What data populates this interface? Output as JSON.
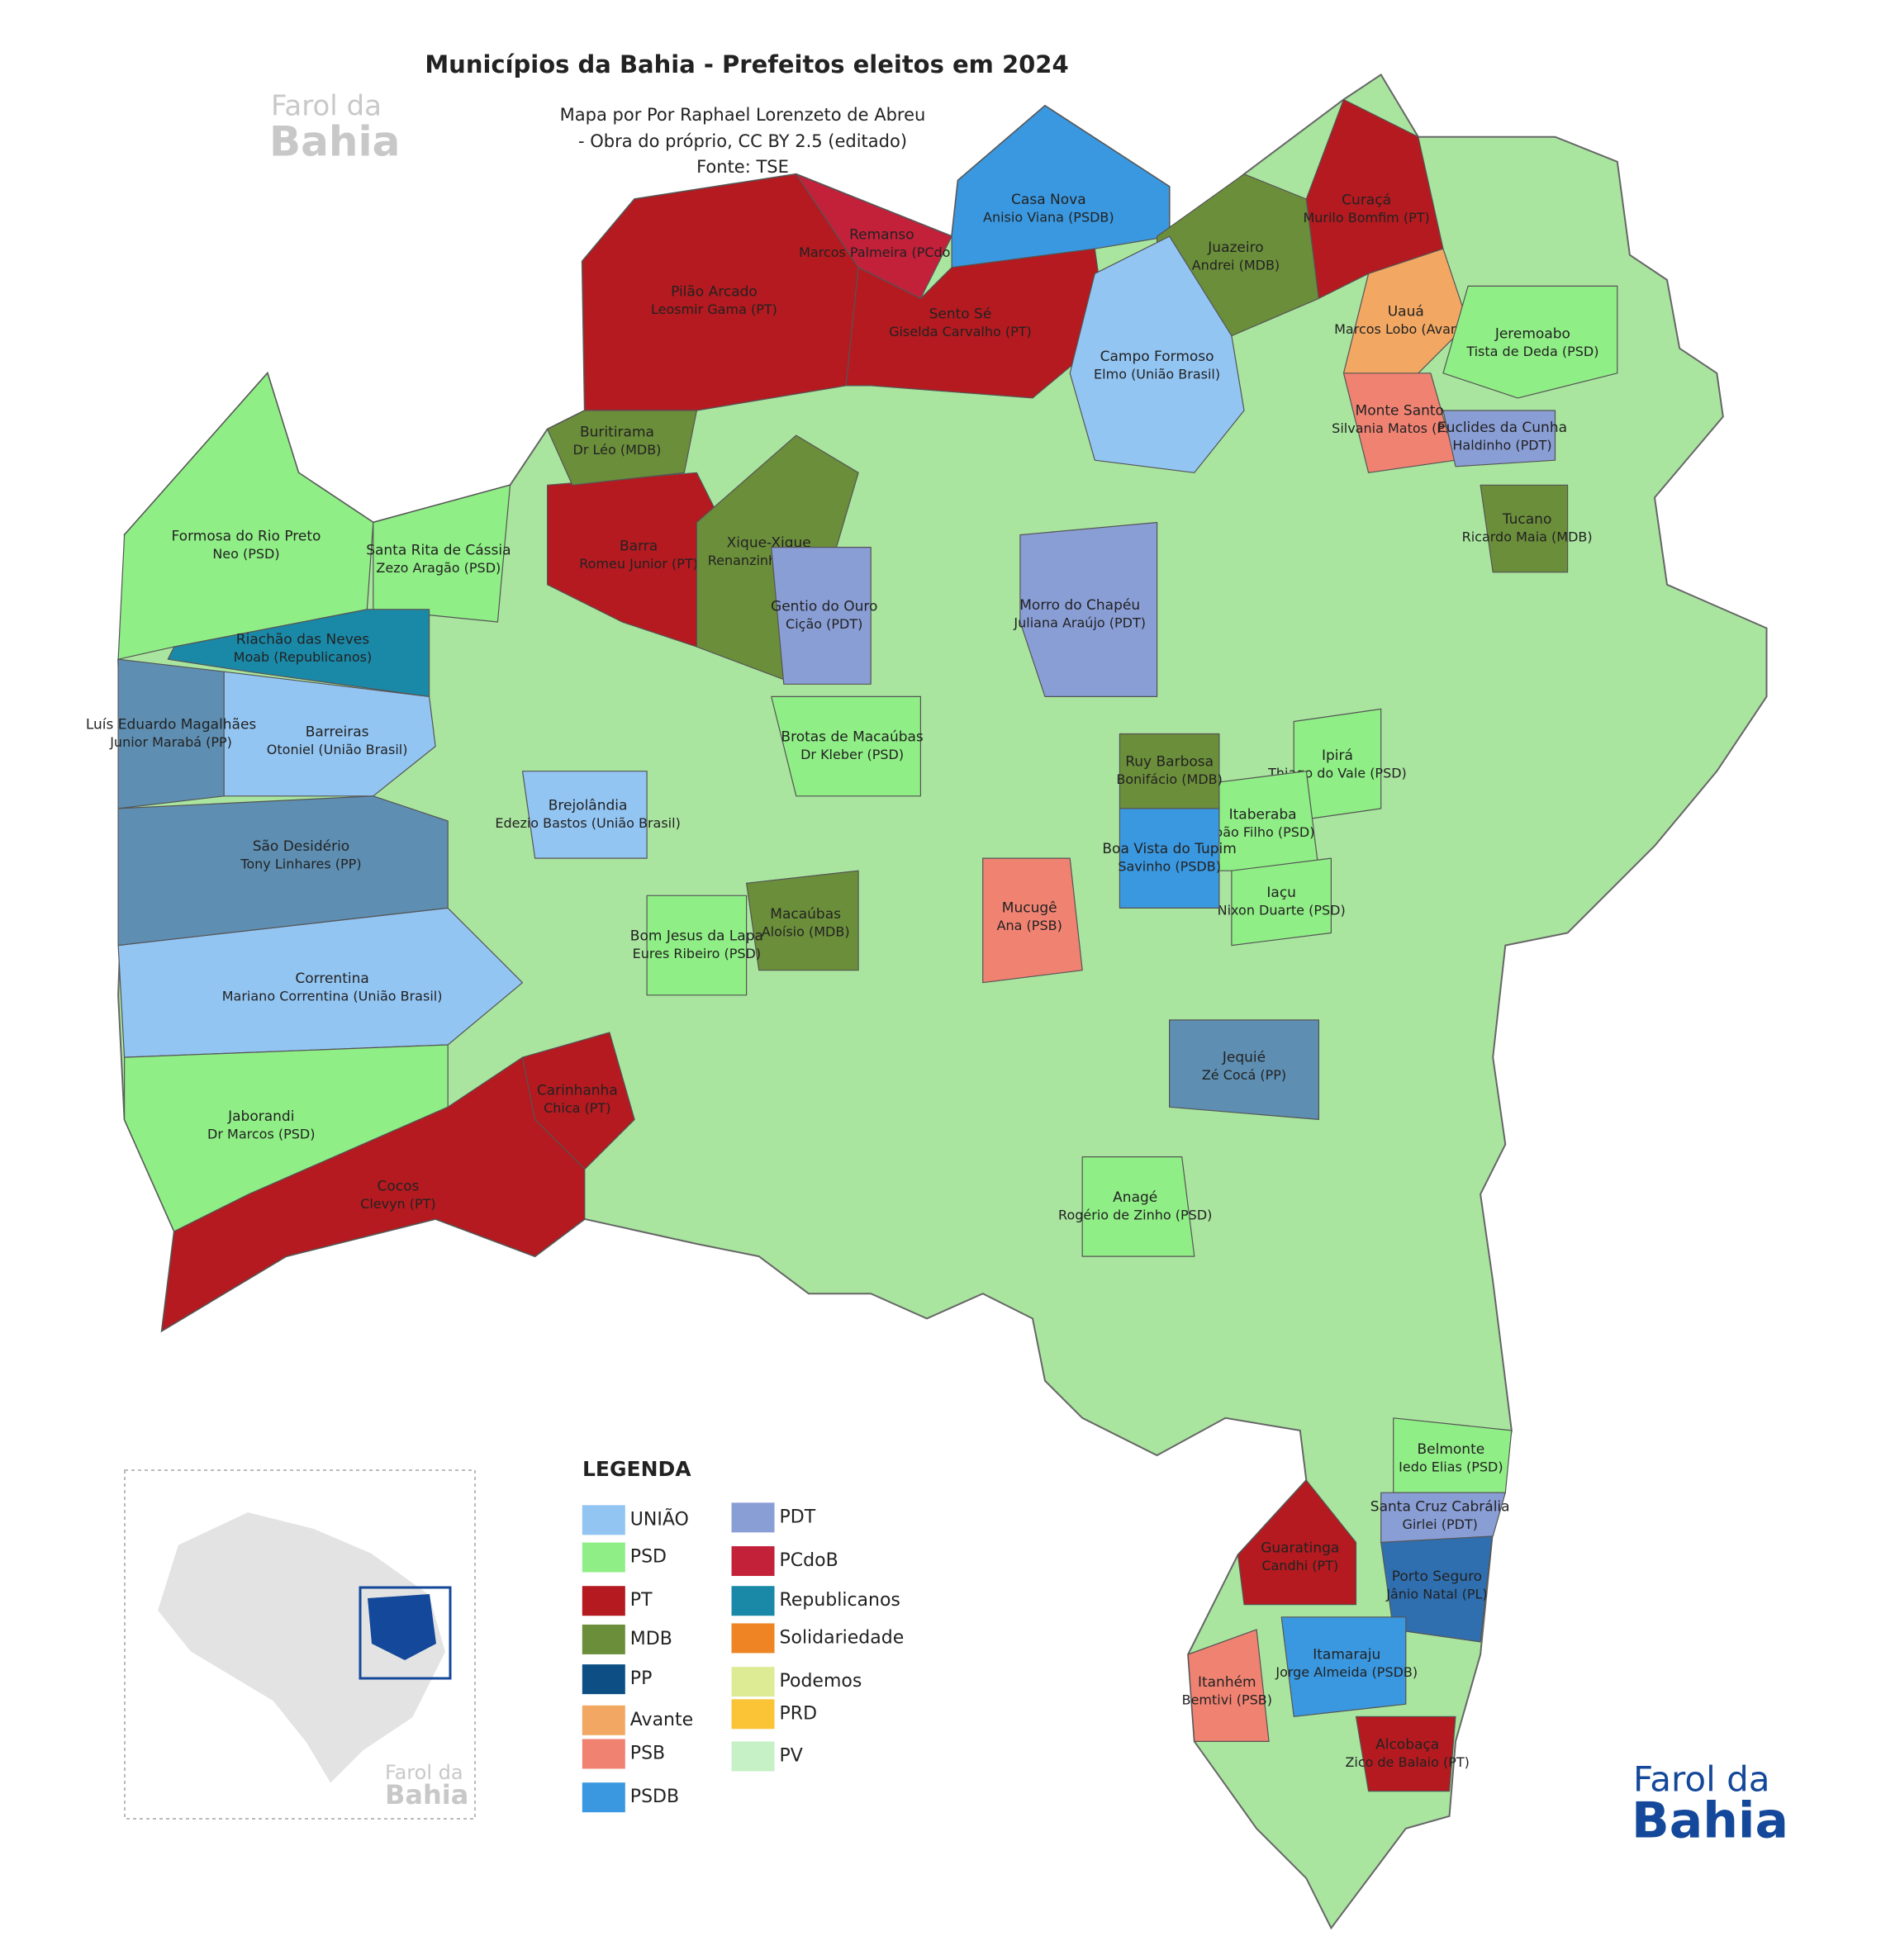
{
  "title": "Municípios da Bahia - Prefeitos eleitos em 2024",
  "subtitle": [
    "Mapa por Por Raphael Lorenzeto de Abreu",
    "- Obra do próprio, CC BY 2.5 (editado)",
    "Fonte: TSE"
  ],
  "brand": [
    "Farol da",
    "Bahia"
  ],
  "legend": {
    "title": "LEGENDA",
    "items": [
      {
        "label": "UNIÃO",
        "color": "#93c5f3"
      },
      {
        "label": "PSD",
        "color": "#90ee86"
      },
      {
        "label": "PT",
        "color": "#b41a1f"
      },
      {
        "label": "MDB",
        "color": "#6b8e3a"
      },
      {
        "label": "PP",
        "color": "#0d4f85"
      },
      {
        "label": "Avante",
        "color": "#f2a863"
      },
      {
        "label": "PSB",
        "color": "#f08272"
      },
      {
        "label": "PSDB",
        "color": "#3a98e0"
      },
      {
        "label": "PDT",
        "color": "#8a9ed6"
      },
      {
        "label": "PCdoB",
        "color": "#c3203a"
      },
      {
        "label": "Republicanos",
        "color": "#1a89a8"
      },
      {
        "label": "Solidariedade",
        "color": "#ee8424"
      },
      {
        "label": "Podemos",
        "color": "#dceb94"
      },
      {
        "label": "PRD",
        "color": "#fbc437"
      },
      {
        "label": "PV",
        "color": "#c6f0c6"
      }
    ]
  },
  "municipalities": [
    {
      "name": "Formosa do Rio Preto",
      "mayor": "Neo (PSD)",
      "color": "#90ee86"
    },
    {
      "name": "Santa Rita de Cássia",
      "mayor": "Zezo Aragão (PSD)",
      "color": "#90ee86"
    },
    {
      "name": "Riachão das Neves",
      "mayor": "Moab (Republicanos)",
      "color": "#1a89a8"
    },
    {
      "name": "Barreiras",
      "mayor": "Otoniel (União Brasil)",
      "color": "#93c5f3"
    },
    {
      "name": "Luís Eduardo Magalhães",
      "mayor": "Junior Marabá (PP)",
      "color": "#5e8fb3"
    },
    {
      "name": "São Desidério",
      "mayor": "Tony Linhares (PP)",
      "color": "#5e8fb3"
    },
    {
      "name": "Correntina",
      "mayor": "Mariano Correntina (União Brasil)",
      "color": "#93c5f3"
    },
    {
      "name": "Jaborandi",
      "mayor": "Dr Marcos (PSD)",
      "color": "#90ee86"
    },
    {
      "name": "Cocos",
      "mayor": "Clevyn (PT)",
      "color": "#b41a1f"
    },
    {
      "name": "Pilão Arcado",
      "mayor": "Leosmir Gama (PT)",
      "color": "#b41a1f"
    },
    {
      "name": "Remanso",
      "mayor": "Marcos Palmeira (PCdoB)",
      "color": "#c3203a"
    },
    {
      "name": "Casa Nova",
      "mayor": "Anisio Viana (PSDB)",
      "color": "#3a98e0"
    },
    {
      "name": "Sento Sé",
      "mayor": "Giselda Carvalho (PT)",
      "color": "#b41a1f"
    },
    {
      "name": "Juazeiro",
      "mayor": "Andrei (MDB)",
      "color": "#6b8e3a"
    },
    {
      "name": "Curaçá",
      "mayor": "Murilo Bomfim (PT)",
      "color": "#b41a1f"
    },
    {
      "name": "Barra",
      "mayor": "Romeu Junior (PT)",
      "color": "#b41a1f"
    },
    {
      "name": "Buritirama",
      "mayor": "Dr Léo (MDB)",
      "color": "#6b8e3a"
    },
    {
      "name": "Campo Formoso",
      "mayor": "Elmo (União Brasil)",
      "color": "#93c5f3"
    },
    {
      "name": "Uauá",
      "mayor": "Marcos Lobo (Avante)",
      "color": "#f2a863"
    },
    {
      "name": "Jeremoabo",
      "mayor": "Tista de Deda (PSD)",
      "color": "#90ee86"
    },
    {
      "name": "Monte Santo",
      "mayor": "Silvania Matos (PSB)",
      "color": "#f08272"
    },
    {
      "name": "Euclides da Cunha",
      "mayor": "Haldinho (PDT)",
      "color": "#8a9ed6"
    },
    {
      "name": "Tucano",
      "mayor": "Ricardo Maia (MDB)",
      "color": "#6b8e3a"
    },
    {
      "name": "Morro do Chapéu",
      "mayor": "Juliana Araújo (PDT)",
      "color": "#8a9ed6"
    },
    {
      "name": "Xique-Xique",
      "mayor": "Renanzinho (MDB)",
      "color": "#6b8e3a"
    },
    {
      "name": "Gentio do Ouro",
      "mayor": "Cição (PDT)",
      "color": "#8a9ed6"
    },
    {
      "name": "Brotas de Macaúbas",
      "mayor": "Dr Kleber (PSD)",
      "color": "#90ee86"
    },
    {
      "name": "Ipirá",
      "mayor": "Thiago do Vale (PSD)",
      "color": "#90ee86"
    },
    {
      "name": "Itaberaba",
      "mayor": "João Filho (PSD)",
      "color": "#90ee86"
    },
    {
      "name": "Iaçu",
      "mayor": "Nixon Duarte (PSD)",
      "color": "#90ee86"
    },
    {
      "name": "Mucugê",
      "mayor": "Ana (PSB)",
      "color": "#f08272"
    },
    {
      "name": "Macaúbas",
      "mayor": "Aloísio (MDB)",
      "color": "#6b8e3a"
    },
    {
      "name": "Bom Jesus da Lapa",
      "mayor": "Eures Ribeiro (PSD)",
      "color": "#90ee86"
    },
    {
      "name": "Boa Vista do Tupim",
      "mayor": "Savinho (PSDB)",
      "color": "#3a98e0"
    },
    {
      "name": "Jequié",
      "mayor": "Zé Cocá (PP)",
      "color": "#5e8fb3"
    },
    {
      "name": "Brejolândia",
      "mayor": "Edezio Bastos (União Brasil)",
      "color": "#93c5f3"
    },
    {
      "name": "Carinhanha",
      "mayor": "Chica (PT)",
      "color": "#b41a1f"
    },
    {
      "name": "Anagé",
      "mayor": "Rogério de Zinho (PSD)",
      "color": "#90ee86"
    },
    {
      "name": "Guaratinga",
      "mayor": "Candhi (PT)",
      "color": "#b41a1f"
    },
    {
      "name": "Porto Seguro",
      "mayor": "Jânio Natal (PL)",
      "color": "#2f6fb0"
    },
    {
      "name": "Itamaraju",
      "mayor": "Jorge Almeida (PSDB)",
      "color": "#3a98e0"
    },
    {
      "name": "Itanhém",
      "mayor": "Bemtivi (PSB)",
      "color": "#f08272"
    },
    {
      "name": "Belmonte",
      "mayor": "Iedo Elias (PSD)",
      "color": "#90ee86"
    },
    {
      "name": "Santa Cruz Cabrália",
      "mayor": "Girlei (PDT)",
      "color": "#8a9ed6"
    },
    {
      "name": "Alcobaça",
      "mayor": "Zico de Balaio (PT)",
      "color": "#b41a1f"
    },
    {
      "name": "Ruy Barbosa",
      "mayor": "Bonifácio (MDB)",
      "color": "#6b8e3a"
    }
  ]
}
